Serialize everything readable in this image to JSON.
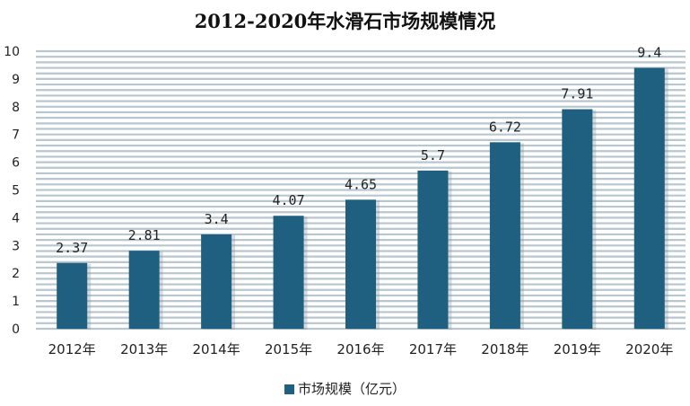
{
  "chart_data": {
    "type": "bar",
    "title": "2012-2020年水滑石市场规模情况",
    "categories": [
      "2012年",
      "2013年",
      "2014年",
      "2015年",
      "2016年",
      "2017年",
      "2018年",
      "2019年",
      "2020年"
    ],
    "series": [
      {
        "name": "市场规模（亿元）",
        "values": [
          2.37,
          2.81,
          3.4,
          4.07,
          4.65,
          5.7,
          6.72,
          7.91,
          9.4
        ],
        "labels": [
          "2.37",
          "2.81",
          "3.4",
          "4.07",
          "4.65",
          "5.7",
          "6.72",
          "7.91",
          "9.4"
        ]
      }
    ],
    "ylim": [
      0,
      10
    ],
    "yticks": [
      "0",
      "1",
      "2",
      "3",
      "4",
      "5",
      "6",
      "7",
      "8",
      "9",
      "10"
    ],
    "grid": true,
    "grid_style": "horizontal stripes",
    "legend_position": "bottom",
    "colors": {
      "bar": "#1f5f7f",
      "stripe": "#b7c6cf",
      "background": "#ffffff"
    }
  }
}
